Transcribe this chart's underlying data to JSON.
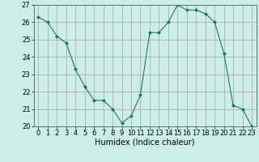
{
  "x": [
    0,
    1,
    2,
    3,
    4,
    5,
    6,
    7,
    8,
    9,
    10,
    11,
    12,
    13,
    14,
    15,
    16,
    17,
    18,
    19,
    20,
    21,
    22,
    23
  ],
  "y": [
    26.3,
    26.0,
    25.2,
    24.8,
    23.3,
    22.3,
    21.5,
    21.5,
    21.0,
    20.2,
    20.6,
    21.8,
    25.4,
    25.4,
    26.0,
    27.0,
    26.7,
    26.7,
    26.5,
    26.0,
    24.2,
    21.2,
    21.0,
    20.0
  ],
  "line_color": "#1a7a6a",
  "marker": "D",
  "marker_size": 2.0,
  "bg_color": "#cceee8",
  "grid_color": "#b0a0a0",
  "xlabel": "Humidex (Indice chaleur)",
  "ylabel": "",
  "ylim": [
    20,
    27
  ],
  "xlim": [
    -0.5,
    23.5
  ],
  "yticks": [
    20,
    21,
    22,
    23,
    24,
    25,
    26,
    27
  ],
  "xticks": [
    0,
    1,
    2,
    3,
    4,
    5,
    6,
    7,
    8,
    9,
    10,
    11,
    12,
    13,
    14,
    15,
    16,
    17,
    18,
    19,
    20,
    21,
    22,
    23
  ],
  "label_fontsize": 7.0,
  "tick_fontsize": 6.0
}
